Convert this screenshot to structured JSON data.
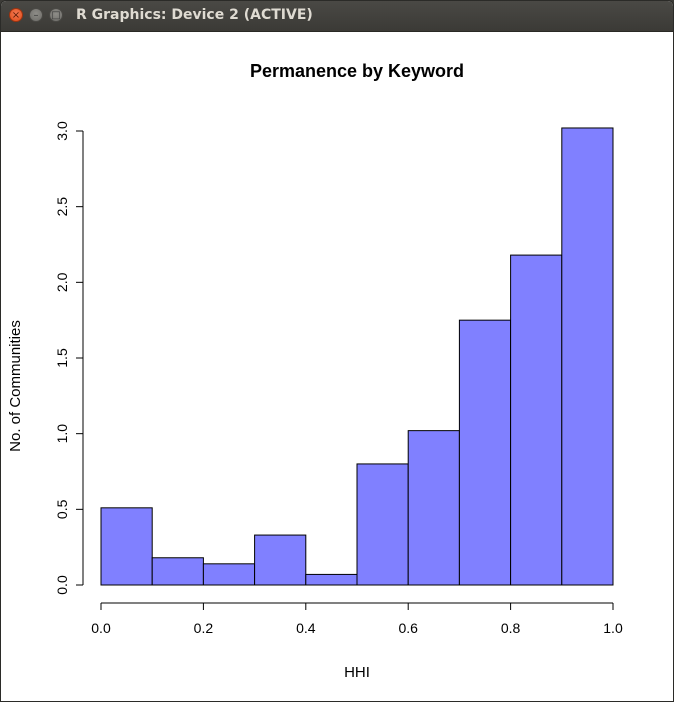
{
  "window": {
    "title": "R Graphics: Device 2 (ACTIVE)",
    "close_glyph": "×",
    "minimize_glyph": "–",
    "maximize_glyph": "□"
  },
  "chart_data": {
    "type": "bar",
    "title": "Permanence by Keyword",
    "xlabel": "HHI",
    "ylabel": "No. of Communities",
    "bin_edges": [
      0.0,
      0.1,
      0.2,
      0.3,
      0.4,
      0.5,
      0.6,
      0.7,
      0.8,
      0.9,
      1.0
    ],
    "values": [
      0.51,
      0.18,
      0.14,
      0.33,
      0.07,
      0.8,
      1.02,
      1.75,
      2.18,
      3.02
    ],
    "xlim": [
      0.0,
      1.0
    ],
    "ylim": [
      0.0,
      3.0
    ],
    "xticks": [
      "0.0",
      "0.2",
      "0.4",
      "0.6",
      "0.8",
      "1.0"
    ],
    "yticks": [
      "0.0",
      "0.5",
      "1.0",
      "1.5",
      "2.0",
      "2.5",
      "3.0"
    ],
    "bar_color": "#8080ff",
    "grid": false
  }
}
